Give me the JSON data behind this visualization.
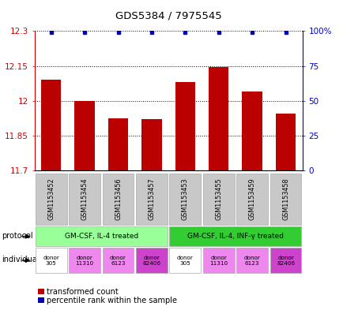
{
  "title": "GDS5384 / 7975545",
  "samples": [
    "GSM1153452",
    "GSM1153454",
    "GSM1153456",
    "GSM1153457",
    "GSM1153453",
    "GSM1153455",
    "GSM1153459",
    "GSM1153458"
  ],
  "red_values": [
    12.09,
    12.0,
    11.925,
    11.92,
    12.08,
    12.145,
    12.04,
    11.945
  ],
  "blue_values": [
    99,
    99,
    99,
    99,
    99,
    99,
    99,
    99
  ],
  "ylim_left": [
    11.7,
    12.3
  ],
  "ylim_right": [
    0,
    100
  ],
  "yticks_left": [
    11.7,
    11.85,
    12.0,
    12.15,
    12.3
  ],
  "yticks_right": [
    0,
    25,
    50,
    75,
    100
  ],
  "ytick_labels_left": [
    "11.7",
    "11.85",
    "12",
    "12.15",
    "12.3"
  ],
  "ytick_labels_right": [
    "0",
    "25",
    "50",
    "75",
    "100%"
  ],
  "protocols": [
    {
      "label": "GM-CSF, IL-4 treated",
      "start": 0,
      "end": 4,
      "color": "#99ff99"
    },
    {
      "label": "GM-CSF, IL-4, INF-γ treated",
      "start": 4,
      "end": 8,
      "color": "#33cc33"
    }
  ],
  "ind_colors": [
    "#ffffff",
    "#ee88ee",
    "#ee88ee",
    "#cc44cc",
    "#ffffff",
    "#ee88ee",
    "#ee88ee",
    "#cc44cc"
  ],
  "ind_labels": [
    "donor\n305",
    "donor\n11310",
    "donor\n6123",
    "donor\n82406",
    "donor\n305",
    "donor\n11310",
    "donor\n6123",
    "donor\n82406"
  ],
  "bar_color": "#bb0000",
  "dot_color": "#0000bb",
  "sample_box_color": "#c8c8c8",
  "left_axis_color": "#cc0000",
  "right_axis_color": "#0000cc"
}
